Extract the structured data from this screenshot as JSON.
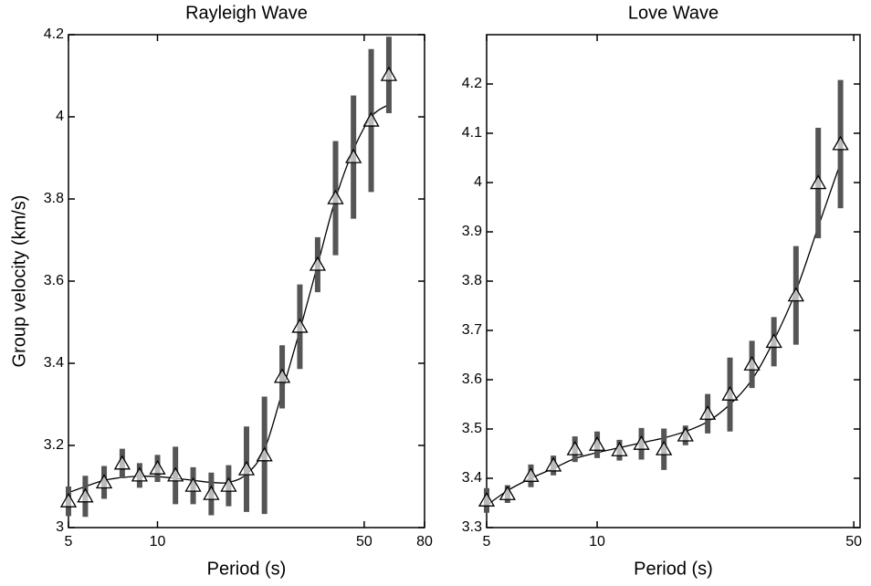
{
  "chart_data": [
    {
      "type": "errorbar",
      "title": "Rayleigh Wave",
      "x_label": "Period (s)",
      "y_label": "Group velocity (km/s)",
      "x_scale": "log",
      "xlim": [
        5,
        80
      ],
      "xticks": [
        5,
        10,
        50,
        80
      ],
      "ylim": [
        3,
        4.2
      ],
      "yticks": [
        3,
        3.2,
        3.4,
        3.6,
        3.8,
        4,
        4.2
      ],
      "x": [
        5,
        5.7,
        6.6,
        7.6,
        8.7,
        10,
        11.5,
        13.2,
        15.2,
        17.4,
        20,
        23,
        26.4,
        30.3,
        34.8,
        40,
        46,
        52.8,
        60.6
      ],
      "series": [
        {
          "color": "#000000",
          "error_color": "#555555",
          "values": [
            3.064,
            3.076,
            3.11,
            3.156,
            3.127,
            3.144,
            3.127,
            3.102,
            3.082,
            3.102,
            3.142,
            3.176,
            3.367,
            3.489,
            3.64,
            3.802,
            3.902,
            3.991,
            4.102
          ],
          "errors": [
            0.036,
            0.05,
            0.04,
            0.036,
            0.03,
            0.033,
            0.07,
            0.045,
            0.052,
            0.05,
            0.104,
            0.143,
            0.077,
            0.103,
            0.067,
            0.139,
            0.15,
            0.174,
            0.093
          ]
        },
        {
          "color": "#000000",
          "values": [
            3.085,
            3.1,
            3.115,
            3.122,
            3.125,
            3.124,
            3.12,
            3.115,
            3.11,
            3.11,
            3.13,
            3.19,
            3.33,
            3.48,
            3.64,
            3.8,
            3.92,
            4.0,
            4.03
          ]
        }
      ]
    },
    {
      "type": "errorbar",
      "title": "Love Wave",
      "x_label": "Period (s)",
      "x_scale": "log",
      "xlim": [
        5,
        52
      ],
      "xticks": [
        5,
        10,
        50
      ],
      "ylim": [
        3.3,
        4.3
      ],
      "yticks": [
        3.3,
        3.4,
        3.5,
        3.6,
        3.7,
        3.8,
        3.9,
        4,
        4.1,
        4.2
      ],
      "x": [
        5,
        5.7,
        6.6,
        7.6,
        8.7,
        10,
        11.5,
        13.2,
        15.2,
        17.4,
        20,
        23,
        26.4,
        30.3,
        34.8,
        40,
        46
      ],
      "series": [
        {
          "color": "#000000",
          "error_color": "#555555",
          "values": [
            3.355,
            3.368,
            3.405,
            3.426,
            3.459,
            3.468,
            3.457,
            3.47,
            3.459,
            3.487,
            3.531,
            3.57,
            3.631,
            3.677,
            3.771,
            3.999,
            4.078
          ],
          "errors": [
            0.025,
            0.018,
            0.023,
            0.02,
            0.026,
            0.027,
            0.021,
            0.032,
            0.042,
            0.02,
            0.04,
            0.075,
            0.048,
            0.05,
            0.1,
            0.112,
            0.13
          ]
        },
        {
          "color": "#000000",
          "values": [
            3.345,
            3.375,
            3.4,
            3.42,
            3.44,
            3.452,
            3.462,
            3.472,
            3.482,
            3.495,
            3.515,
            3.55,
            3.6,
            3.68,
            3.78,
            3.91,
            4.04
          ]
        }
      ]
    }
  ]
}
